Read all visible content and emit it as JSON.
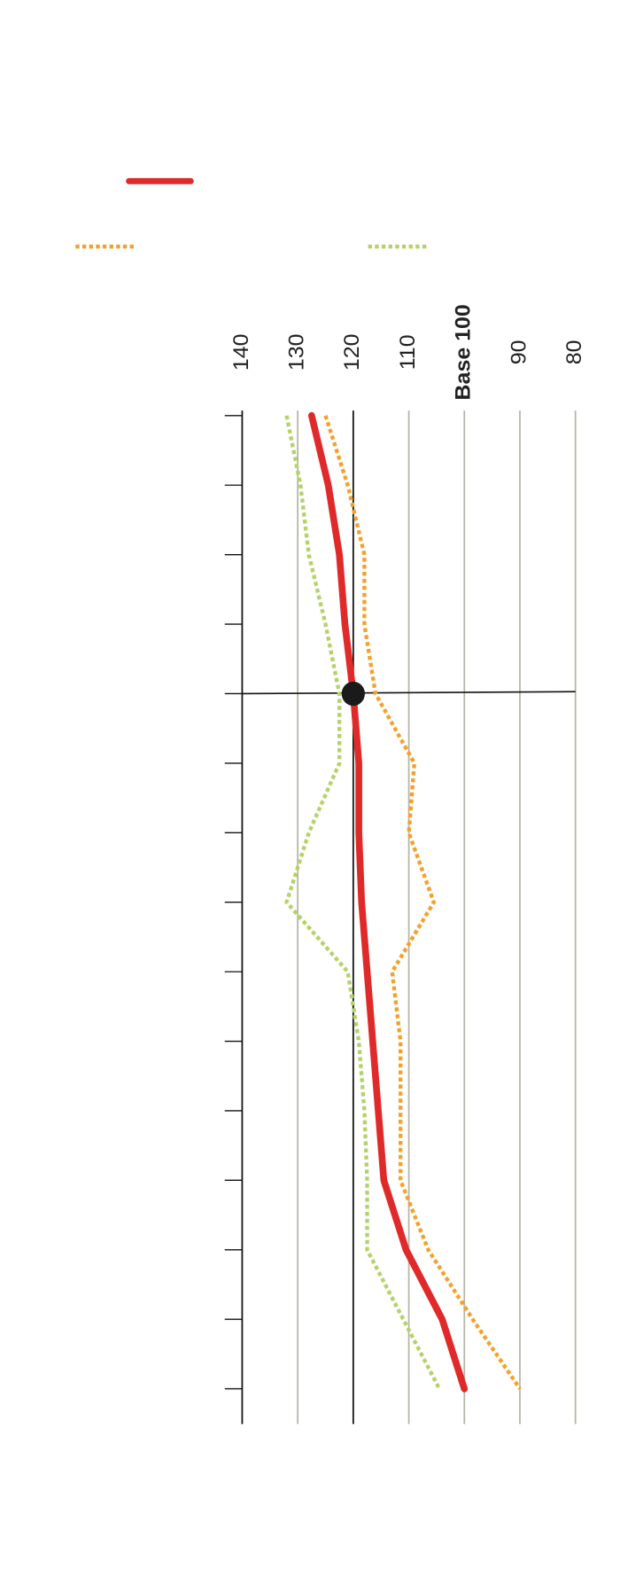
{
  "chart_data": {
    "type": "line",
    "orientation": "vertical-categories",
    "categories": [
      null,
      null,
      null,
      null,
      null,
      null,
      null,
      null,
      null,
      null,
      null,
      null,
      null,
      null,
      null
    ],
    "series": [
      {
        "color": "#e02a2a",
        "dash": "solid",
        "values": [
          127.5,
          124.5,
          122.5,
          121.5,
          120,
          119,
          119,
          118.5,
          117.5,
          116.5,
          115.5,
          114.5,
          110.5,
          104,
          100
        ]
      },
      {
        "color": "#f4a12c",
        "dash": "dotted",
        "values": [
          125,
          121,
          118,
          118,
          116,
          109,
          110,
          105.5,
          113,
          111.5,
          111.5,
          111.5,
          106.5,
          98.5,
          90
        ]
      },
      {
        "color": "#b3d36a",
        "dash": "dotted",
        "values": [
          132,
          129.5,
          128,
          125,
          122.5,
          122.5,
          128,
          132,
          121,
          119,
          118,
          117.5,
          117.5,
          111,
          104.5
        ]
      }
    ],
    "xlim": [
      140,
      80
    ],
    "xticks": [
      140,
      130,
      120,
      110,
      {
        "value": 100,
        "label": "Base 100"
      },
      90,
      80
    ],
    "reference_value": 120,
    "highlight_index": 4,
    "grid": true
  }
}
